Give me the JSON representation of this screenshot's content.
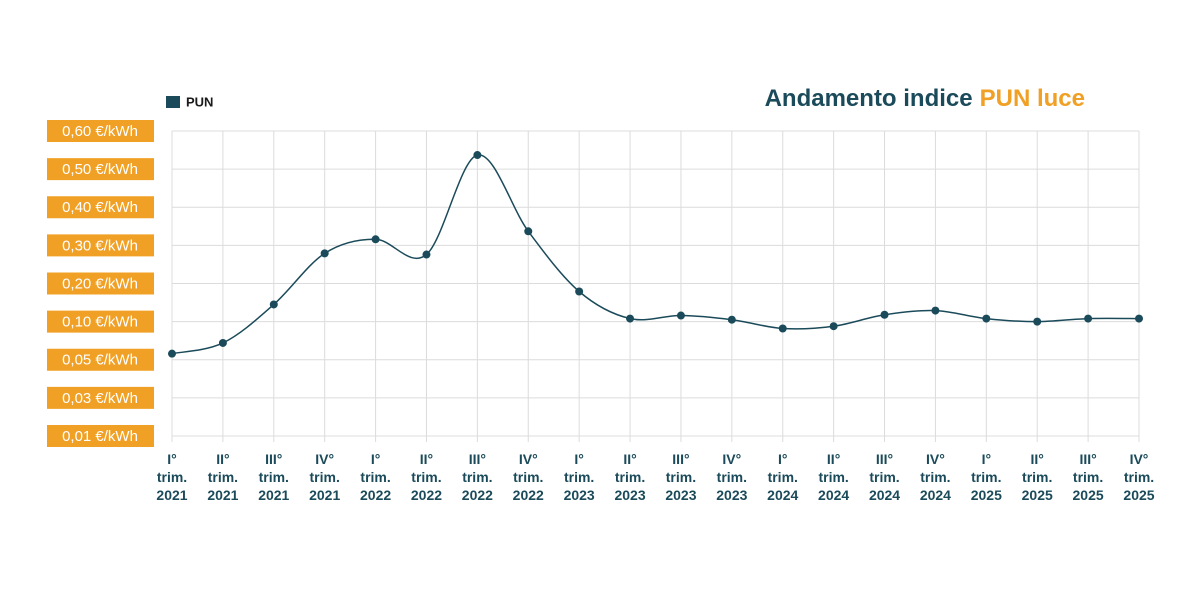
{
  "chart_data": {
    "type": "line",
    "title": {
      "text": "Andamento indice",
      "highlight": "PUN luce"
    },
    "categories": [
      [
        "I°",
        "trim.",
        "2021"
      ],
      [
        "II°",
        "trim.",
        "2021"
      ],
      [
        "III°",
        "trim.",
        "2021"
      ],
      [
        "IV°",
        "trim.",
        "2021"
      ],
      [
        "I°",
        "trim.",
        "2022"
      ],
      [
        "II°",
        "trim.",
        "2022"
      ],
      [
        "III°",
        "trim.",
        "2022"
      ],
      [
        "IV°",
        "trim.",
        "2022"
      ],
      [
        "I°",
        "trim.",
        "2023"
      ],
      [
        "II°",
        "trim.",
        "2023"
      ],
      [
        "III°",
        "trim.",
        "2023"
      ],
      [
        "IV°",
        "trim.",
        "2023"
      ],
      [
        "I°",
        "trim.",
        "2024"
      ],
      [
        "II°",
        "trim.",
        "2024"
      ],
      [
        "III°",
        "trim.",
        "2024"
      ],
      [
        "IV°",
        "trim.",
        "2024"
      ],
      [
        "I°",
        "trim.",
        "2025"
      ],
      [
        "II°",
        "trim.",
        "2025"
      ],
      [
        "III°",
        "trim.",
        "2025"
      ],
      [
        "IV°",
        "trim.",
        "2025"
      ]
    ],
    "series": [
      {
        "name": "PUN",
        "color": "#1b4b5a",
        "values": [
          0.058,
          0.072,
          0.145,
          0.279,
          0.316,
          0.276,
          0.537,
          0.337,
          0.179,
          0.108,
          0.116,
          0.105,
          0.091,
          0.094,
          0.118,
          0.129,
          0.108,
          0.1,
          0.108,
          0.108
        ]
      }
    ],
    "ylim": [
      0.01,
      0.6
    ],
    "yticks": [
      {
        "value": 0.01,
        "label": "0,01 €/kWh"
      },
      {
        "value": 0.03,
        "label": "0,03 €/kWh"
      },
      {
        "value": 0.05,
        "label": "0,05 €/kWh"
      },
      {
        "value": 0.1,
        "label": "0,10 €/kWh"
      },
      {
        "value": 0.2,
        "label": "0,20 €/kWh"
      },
      {
        "value": 0.3,
        "label": "0,30 €/kWh"
      },
      {
        "value": 0.4,
        "label": "0,40 €/kWh"
      },
      {
        "value": 0.5,
        "label": "0,50 €/kWh"
      },
      {
        "value": 0.6,
        "label": "0,60 €/kWh"
      }
    ],
    "grid": true,
    "tick_color": "#f0a024",
    "legend": "top-left"
  }
}
